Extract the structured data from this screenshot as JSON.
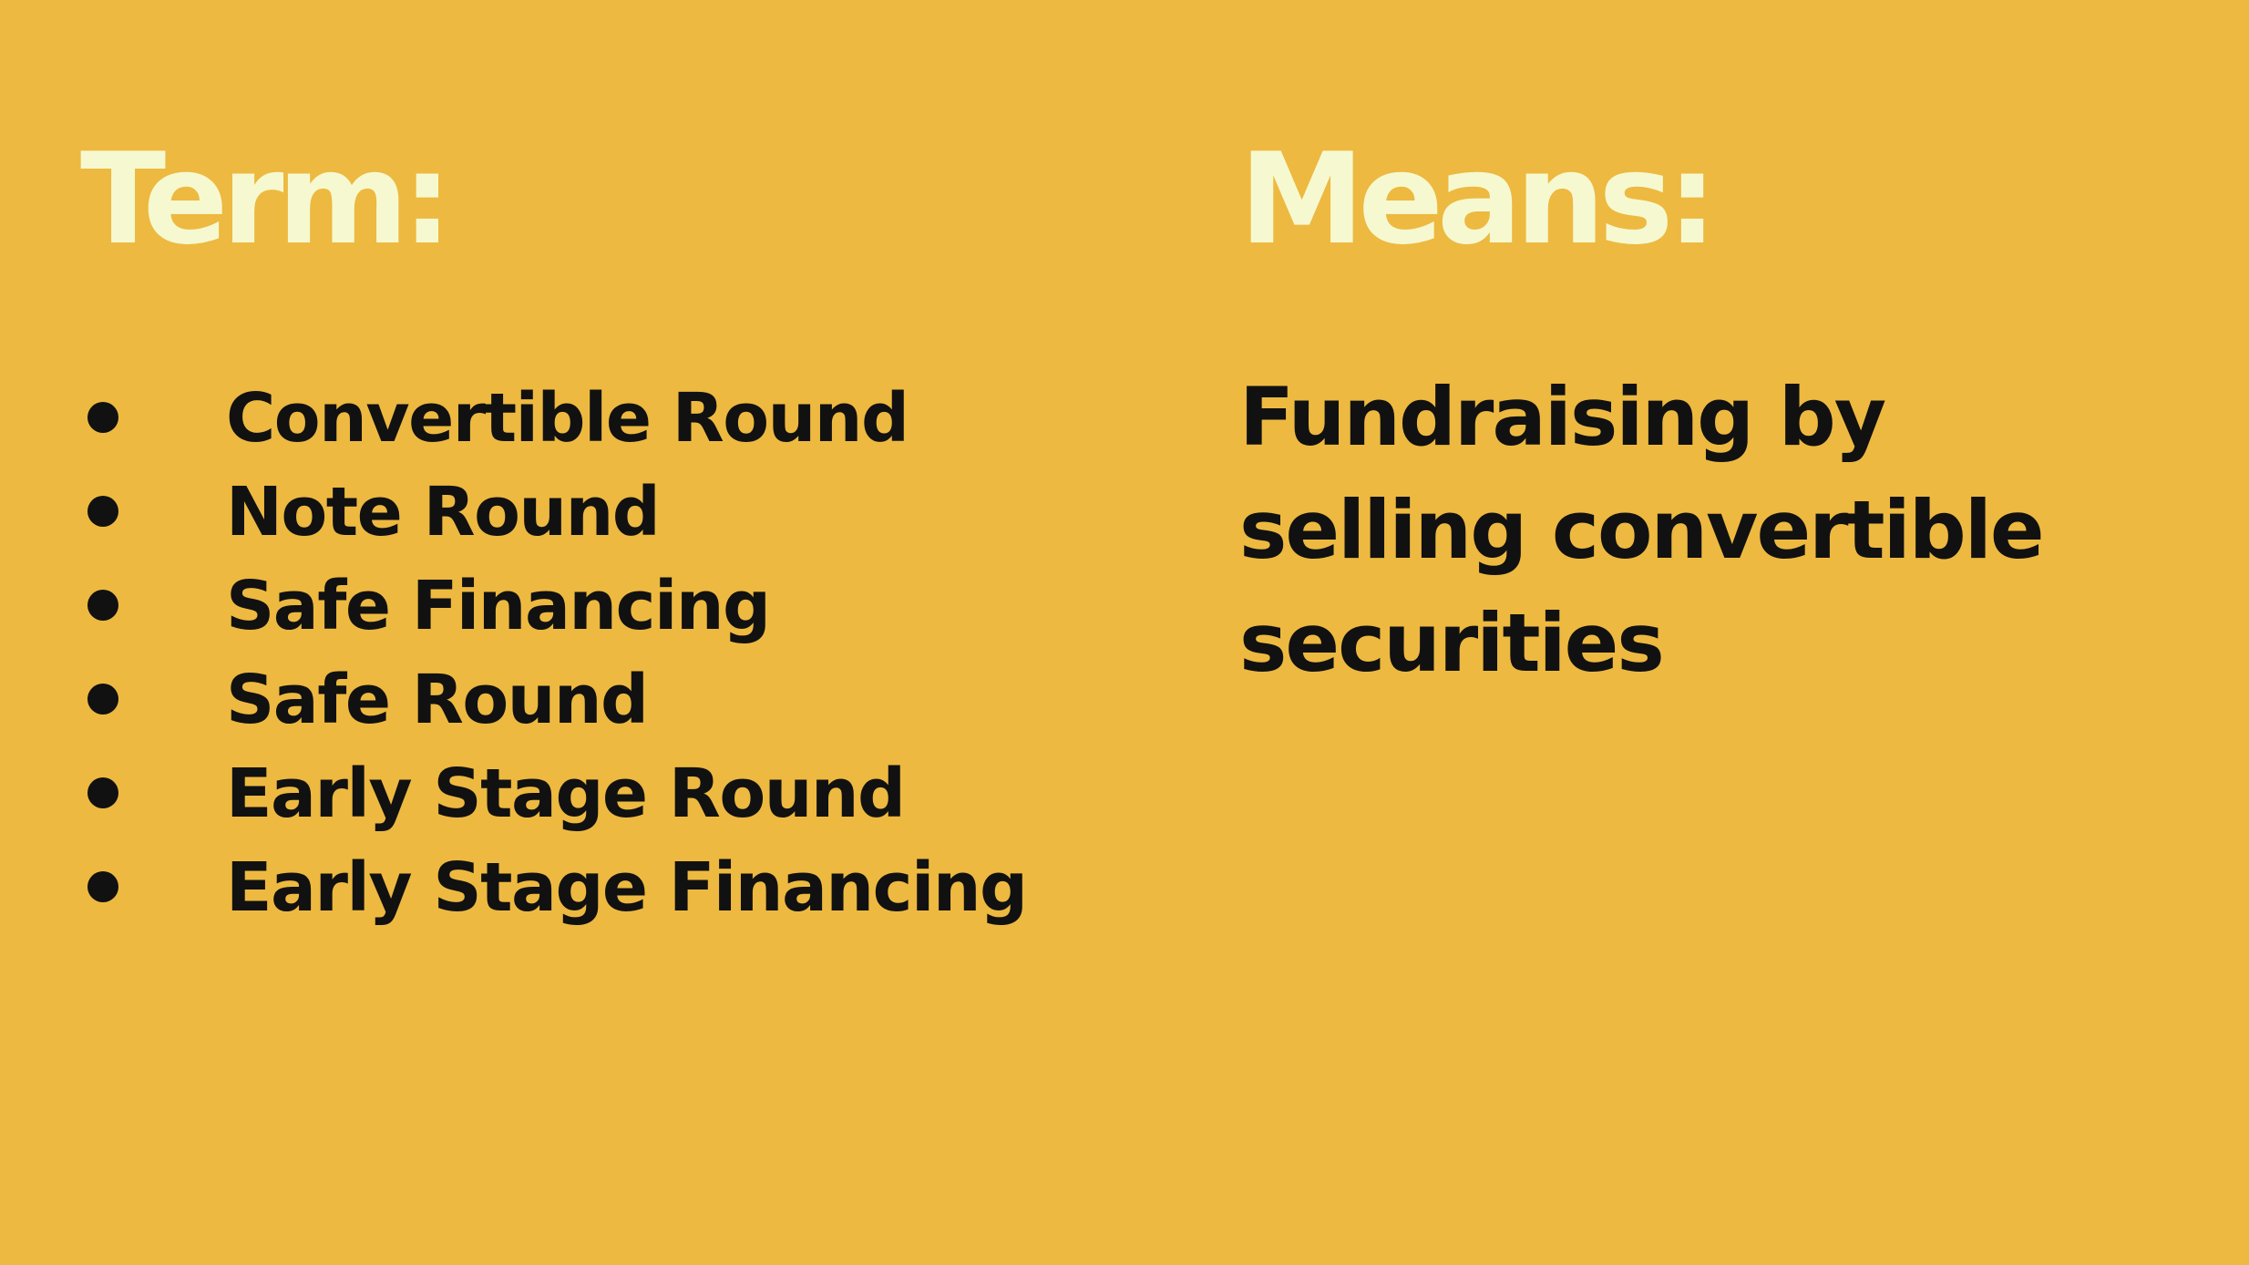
{
  "slide": {
    "background_color": "#EDB940",
    "title_color": "#F6F9D0",
    "text_color": "#111111",
    "term_heading": "Term:",
    "means_heading": "Means:",
    "terms": [
      "Convertible Round",
      "Note Round",
      "Safe Financing",
      "Safe Round",
      "Early Stage Round",
      "Early Stage Financing"
    ],
    "definition_lines": [
      "Fundraising by",
      "selling convertible",
      "securities"
    ]
  }
}
